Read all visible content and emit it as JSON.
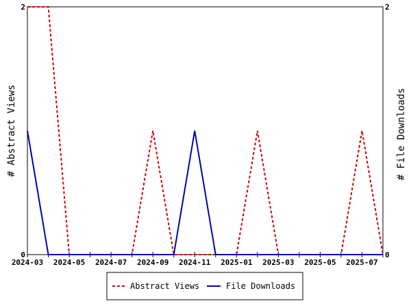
{
  "chart_data": {
    "type": "line",
    "title": "",
    "xlabel": "",
    "ylabel_left": "# Abstract Views",
    "ylabel_right": "# File Downloads",
    "x_tick_labels": [
      "2024-03",
      "2024-05",
      "2024-07",
      "2024-09",
      "2024-11",
      "2025-01",
      "2025-03",
      "2025-05",
      "2025-07"
    ],
    "x": [
      "2024-03",
      "2024-04",
      "2024-05",
      "2024-06",
      "2024-07",
      "2024-08",
      "2024-09",
      "2024-10",
      "2024-11",
      "2024-12",
      "2025-01",
      "2025-02",
      "2025-03",
      "2025-04",
      "2025-05",
      "2025-06",
      "2025-07",
      "2025-08"
    ],
    "ylim_left": [
      0,
      2
    ],
    "ylim_right": [
      0,
      2
    ],
    "y_left_tick_labels": [
      "0",
      "2"
    ],
    "y_right_tick_labels": [
      "0",
      "2"
    ],
    "grid": false,
    "legend_position": "bottom",
    "series": [
      {
        "name": "Abstract Views",
        "axis": "left",
        "color": "#cc0000",
        "dash": "dashed",
        "values": [
          2,
          2,
          0,
          0,
          0,
          0,
          1,
          0,
          0,
          0,
          0,
          1,
          0,
          0,
          0,
          0,
          1,
          0
        ]
      },
      {
        "name": "File Downloads",
        "axis": "right",
        "color": "#0000aa",
        "dash": "solid",
        "values": [
          1,
          0,
          0,
          0,
          0,
          0,
          0,
          0,
          1,
          0,
          0,
          0,
          0,
          0,
          0,
          0,
          0,
          0
        ]
      }
    ]
  }
}
